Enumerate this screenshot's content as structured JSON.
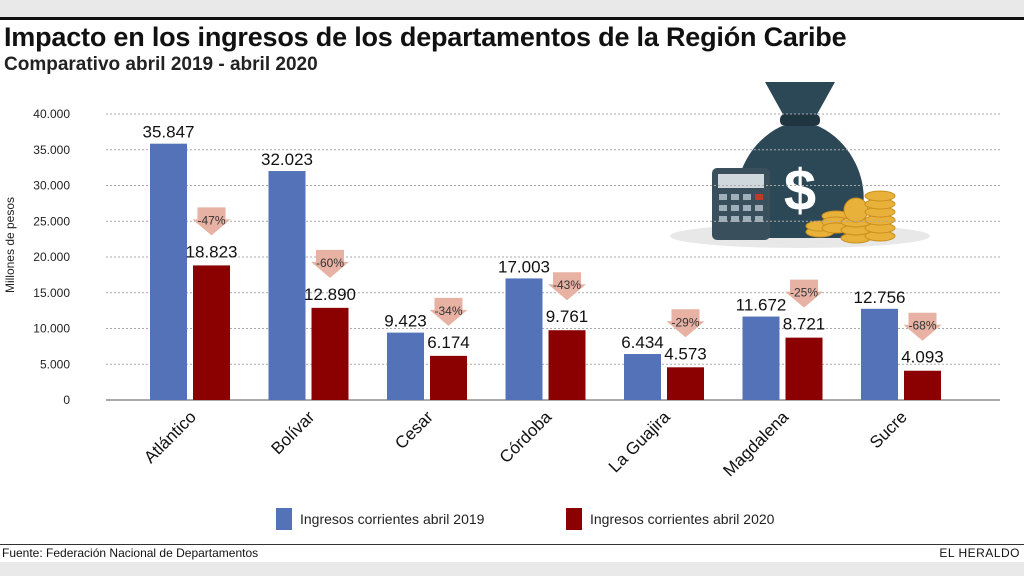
{
  "header": {
    "title": "Impacto en los ingresos de los departamentos de la Región Caribe",
    "subtitle": "Comparativo abril 2019 - abril 2020"
  },
  "chart_data": {
    "type": "bar",
    "title": "Impacto en los ingresos de los departamentos de la Región Caribe",
    "subtitle": "Comparativo abril 2019 - abril 2020",
    "xlabel": "",
    "ylabel": "Millones de pesos",
    "ylim": [
      0,
      40000
    ],
    "yticks": [
      0,
      5000,
      10000,
      15000,
      20000,
      25000,
      30000,
      35000,
      40000
    ],
    "ytick_labels": [
      "0",
      "5.000",
      "10.000",
      "15.000",
      "20.000",
      "25.000",
      "30.000",
      "35.000",
      "40.000"
    ],
    "grid": true,
    "legend_position": "bottom",
    "categories": [
      "Atlántico",
      "Bolívar",
      "Cesar",
      "Córdoba",
      "La Guajira",
      "Magdalena",
      "Sucre"
    ],
    "series": [
      {
        "name": "Ingresos corrientes abril 2019",
        "color": "#5472b8",
        "values": [
          35847,
          32023,
          9423,
          17003,
          6434,
          11672,
          12756
        ],
        "labels": [
          "35.847",
          "32.023",
          "9.423",
          "17.003",
          "6.434",
          "11.672",
          "12.756"
        ]
      },
      {
        "name": "Ingresos corrientes abril 2020",
        "color": "#8b0000",
        "values": [
          18823,
          12890,
          6174,
          9761,
          4573,
          8721,
          4093
        ],
        "labels": [
          "18.823",
          "12.890",
          "6.174",
          "9.761",
          "4.573",
          "8.721",
          "4.093"
        ]
      }
    ],
    "changes": [
      "-47%",
      "-60%",
      "-34%",
      "-43%",
      "-29%",
      "-25%",
      "-68%"
    ],
    "change_color": "#e7b2a3"
  },
  "footer": {
    "source": "Fuente: Federación Nacional de Departamentos",
    "brand": "EL HERALDO"
  },
  "illustration": {
    "icon": "money-bag-dollar-icon",
    "extra_icons": [
      "calculator-icon",
      "coins-icon"
    ]
  }
}
